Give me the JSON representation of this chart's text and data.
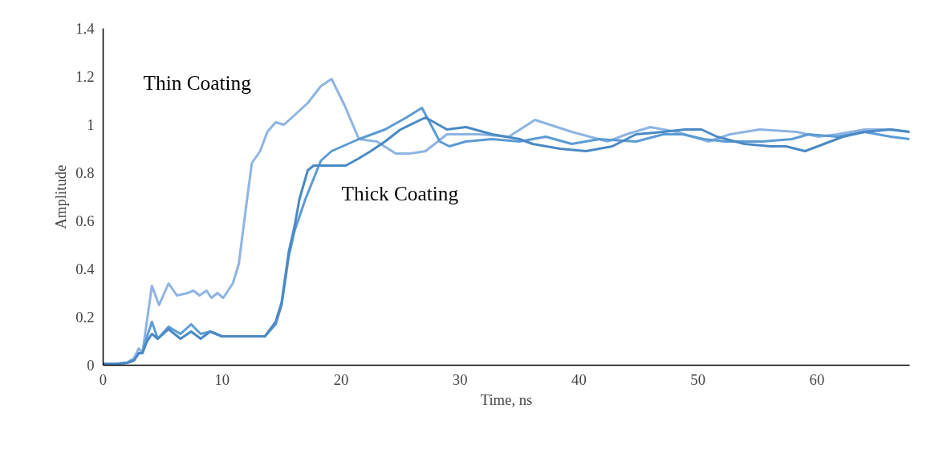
{
  "chart_data": {
    "type": "line",
    "xlabel": "Time, ns",
    "ylabel": "Amplitude",
    "xlim": [
      0,
      67.8
    ],
    "ylim": [
      0,
      1.4
    ],
    "xticks": [
      0,
      10,
      20,
      30,
      40,
      50,
      60
    ],
    "yticks": [
      0,
      0.2,
      0.4,
      0.6,
      0.8,
      1,
      1.2,
      1.4
    ],
    "grid": false,
    "marker": "none",
    "line_style": "solid",
    "annotations": [
      "Thin Coating",
      "Thick Coating"
    ],
    "series": [
      {
        "color": "#8db4e2",
        "x": [
          0,
          1,
          2,
          2.6,
          3.0,
          3.3,
          4.1,
          4.7,
          5.5,
          6.2,
          7.1,
          7.6,
          8.1,
          8.7,
          9.1,
          9.6,
          10.1,
          10.9,
          11.4,
          12.1,
          12.5,
          13.2,
          13.8,
          14.5,
          15.2,
          16.1,
          17.2,
          18.3,
          19.2,
          20.3,
          21.5,
          23.0,
          24.6,
          25.8,
          27.1,
          28.9,
          31.6,
          34.1,
          36.3,
          39.4,
          42.4,
          44.0,
          46.0,
          48.2,
          50.9,
          52.7,
          55.2,
          58.3,
          60.1,
          61.7,
          64.0,
          66.0,
          67.8
        ],
        "values": [
          0.005,
          0.005,
          0.01,
          0.03,
          0.07,
          0.05,
          0.33,
          0.25,
          0.34,
          0.29,
          0.3,
          0.31,
          0.29,
          0.31,
          0.28,
          0.3,
          0.28,
          0.34,
          0.42,
          0.69,
          0.84,
          0.89,
          0.97,
          1.01,
          1.0,
          1.04,
          1.09,
          1.16,
          1.19,
          1.08,
          0.94,
          0.93,
          0.88,
          0.88,
          0.89,
          0.96,
          0.96,
          0.95,
          1.02,
          0.97,
          0.93,
          0.96,
          0.99,
          0.97,
          0.93,
          0.96,
          0.98,
          0.97,
          0.95,
          0.96,
          0.98,
          0.98,
          0.97
        ]
      },
      {
        "color": "#5b9bd5",
        "x": [
          0,
          1,
          2,
          2.6,
          3.0,
          3.3,
          3.7,
          4.1,
          4.6,
          5.5,
          6.5,
          7.4,
          8.2,
          9.0,
          10.0,
          11.5,
          12.5,
          13.6,
          14.5,
          15.0,
          15.6,
          16.1,
          17.0,
          18.3,
          19.2,
          21.5,
          23.7,
          25.5,
          26.8,
          28.3,
          29.1,
          30.5,
          32.7,
          35.0,
          37.2,
          39.4,
          41.7,
          44.8,
          47.1,
          48.7,
          50.5,
          52.3,
          55.4,
          57.9,
          59.3,
          61.7,
          64.0,
          66.2,
          67.8
        ],
        "values": [
          0.005,
          0.005,
          0.01,
          0.02,
          0.05,
          0.05,
          0.12,
          0.18,
          0.11,
          0.16,
          0.13,
          0.17,
          0.13,
          0.14,
          0.12,
          0.12,
          0.12,
          0.12,
          0.17,
          0.25,
          0.45,
          0.56,
          0.69,
          0.85,
          0.89,
          0.94,
          0.98,
          1.03,
          1.07,
          0.93,
          0.91,
          0.93,
          0.94,
          0.93,
          0.95,
          0.92,
          0.94,
          0.93,
          0.96,
          0.96,
          0.94,
          0.93,
          0.93,
          0.94,
          0.96,
          0.95,
          0.97,
          0.95,
          0.94
        ]
      },
      {
        "color": "#4a89c4",
        "x": [
          0,
          1,
          2,
          2.6,
          3.0,
          3.3,
          3.7,
          4.1,
          4.6,
          5.5,
          6.5,
          7.4,
          8.2,
          9.0,
          10.0,
          11.5,
          12.5,
          13.6,
          14.5,
          15.0,
          15.6,
          16.1,
          16.5,
          17.2,
          17.7,
          19.0,
          20.4,
          21.5,
          22.5,
          23.7,
          25.0,
          27.1,
          28.9,
          30.5,
          32.7,
          35.0,
          36.1,
          38.4,
          40.6,
          42.8,
          44.8,
          47.1,
          48.9,
          50.3,
          51.6,
          53.9,
          56.1,
          57.4,
          59.0,
          60.6,
          62.2,
          64.0,
          66.2,
          67.8
        ],
        "values": [
          0.005,
          0.005,
          0.01,
          0.02,
          0.05,
          0.05,
          0.1,
          0.13,
          0.11,
          0.15,
          0.11,
          0.14,
          0.11,
          0.14,
          0.12,
          0.12,
          0.12,
          0.12,
          0.18,
          0.26,
          0.47,
          0.58,
          0.69,
          0.81,
          0.83,
          0.83,
          0.83,
          0.86,
          0.89,
          0.93,
          0.98,
          1.03,
          0.98,
          0.99,
          0.96,
          0.94,
          0.92,
          0.9,
          0.89,
          0.91,
          0.96,
          0.97,
          0.98,
          0.98,
          0.95,
          0.92,
          0.91,
          0.91,
          0.89,
          0.92,
          0.95,
          0.97,
          0.98,
          0.97
        ]
      }
    ]
  }
}
